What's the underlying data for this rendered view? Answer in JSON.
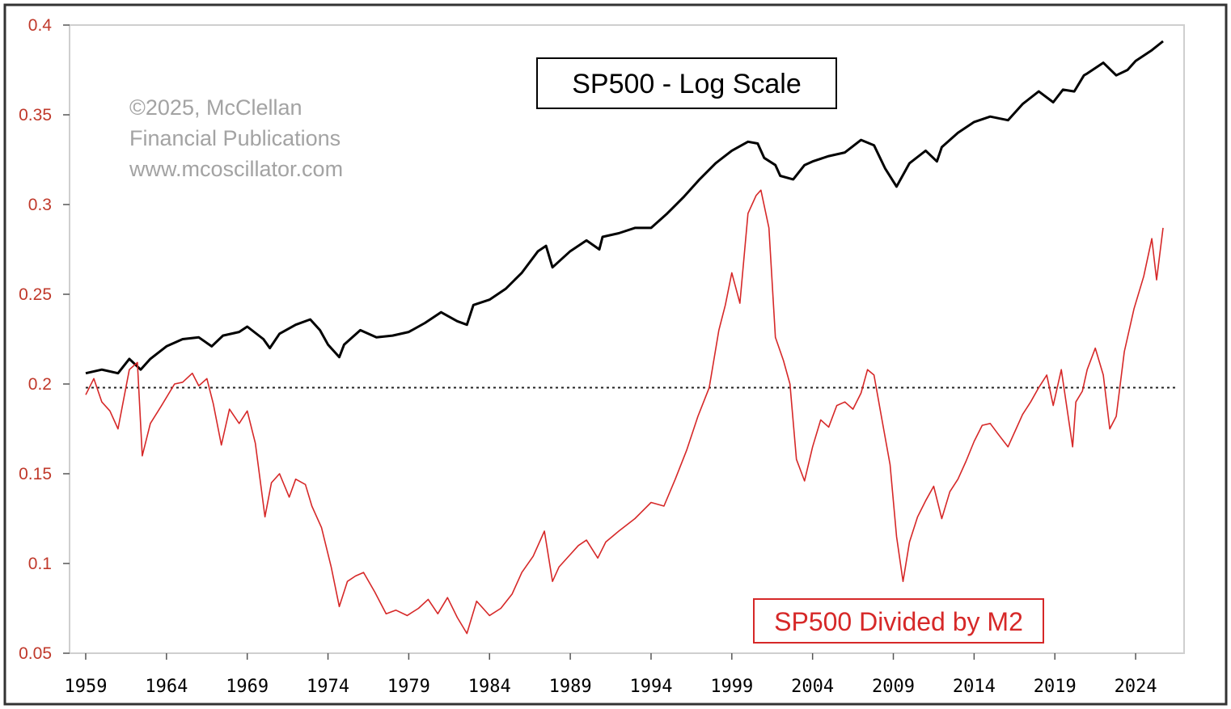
{
  "chart_data": {
    "type": "line",
    "title": "SP500 - Log Scale",
    "copyright": [
      "©2025, McClellan",
      "Financial Publications",
      "www.mcoscillator.com"
    ],
    "xlabel": "",
    "ylabel": "",
    "xlim": [
      1958,
      2027
    ],
    "ylim": [
      0.05,
      0.4
    ],
    "y_ticks": [
      "0.4",
      "0.35",
      "0.3",
      "0.25",
      "0.2",
      "0.15",
      "0.1",
      "0.05"
    ],
    "x_ticks": [
      "1959",
      "1964",
      "1969",
      "1974",
      "1979",
      "1984",
      "1989",
      "1994",
      "1999",
      "2004",
      "2009",
      "2014",
      "2019",
      "2024"
    ],
    "reference_line": {
      "y": 0.198,
      "style": "dotted"
    },
    "colors": {
      "axis_red": "#c0392b",
      "series_red": "#d62828",
      "series_black": "#000000",
      "frame": "#555555"
    },
    "series": [
      {
        "name": "SP500 - Log Scale",
        "color": "#000000",
        "x": [
          1959.0,
          1960.0,
          1961.0,
          1961.7,
          1962.4,
          1963.0,
          1964.0,
          1965.0,
          1966.0,
          1966.8,
          1967.5,
          1968.5,
          1969.0,
          1970.0,
          1970.4,
          1971.0,
          1972.0,
          1972.9,
          1973.5,
          1974.0,
          1974.7,
          1975.0,
          1976.0,
          1977.0,
          1978.0,
          1979.0,
          1980.0,
          1981.0,
          1982.0,
          1982.6,
          1983.0,
          1984.0,
          1985.0,
          1986.0,
          1987.0,
          1987.5,
          1987.9,
          1989.0,
          1990.0,
          1990.8,
          1991.0,
          1992.0,
          1993.0,
          1994.0,
          1995.0,
          1996.0,
          1997.0,
          1998.0,
          1999.0,
          2000.0,
          2000.6,
          2001.0,
          2001.7,
          2002.0,
          2002.8,
          2003.5,
          2004.0,
          2005.0,
          2006.0,
          2007.0,
          2007.8,
          2008.5,
          2009.2,
          2010.0,
          2011.0,
          2011.7,
          2012.0,
          2013.0,
          2014.0,
          2015.0,
          2016.1,
          2017.0,
          2018.0,
          2018.9,
          2019.5,
          2020.2,
          2020.8,
          2021.0,
          2022.0,
          2022.8,
          2023.5,
          2024.0,
          2025.0,
          2025.7
        ],
        "values": [
          0.206,
          0.208,
          0.206,
          0.214,
          0.208,
          0.214,
          0.221,
          0.225,
          0.226,
          0.221,
          0.227,
          0.229,
          0.232,
          0.225,
          0.22,
          0.228,
          0.233,
          0.236,
          0.23,
          0.222,
          0.215,
          0.222,
          0.23,
          0.226,
          0.227,
          0.229,
          0.234,
          0.24,
          0.235,
          0.233,
          0.244,
          0.247,
          0.253,
          0.262,
          0.274,
          0.277,
          0.265,
          0.274,
          0.28,
          0.275,
          0.282,
          0.284,
          0.287,
          0.287,
          0.295,
          0.304,
          0.314,
          0.323,
          0.33,
          0.335,
          0.334,
          0.326,
          0.322,
          0.316,
          0.314,
          0.322,
          0.324,
          0.327,
          0.329,
          0.336,
          0.333,
          0.32,
          0.31,
          0.323,
          0.33,
          0.324,
          0.332,
          0.34,
          0.346,
          0.349,
          0.347,
          0.356,
          0.363,
          0.357,
          0.364,
          0.363,
          0.372,
          0.373,
          0.379,
          0.372,
          0.375,
          0.38,
          0.386,
          0.391
        ]
      },
      {
        "name": "SP500 Divided by M2",
        "color": "#d62828",
        "x": [
          1959.0,
          1959.5,
          1960.0,
          1960.5,
          1961.0,
          1961.7,
          1962.2,
          1962.5,
          1963.0,
          1963.7,
          1964.5,
          1965.0,
          1965.6,
          1966.0,
          1966.5,
          1966.9,
          1967.4,
          1967.9,
          1968.5,
          1969.0,
          1969.5,
          1970.1,
          1970.5,
          1971.0,
          1971.6,
          1972.0,
          1972.6,
          1973.0,
          1973.6,
          1974.2,
          1974.7,
          1975.2,
          1975.7,
          1976.2,
          1976.9,
          1977.6,
          1978.2,
          1978.9,
          1979.6,
          1980.2,
          1980.8,
          1981.4,
          1982.0,
          1982.6,
          1983.2,
          1984.0,
          1984.7,
          1985.4,
          1986.0,
          1986.7,
          1987.4,
          1987.9,
          1988.3,
          1989.0,
          1989.5,
          1990.0,
          1990.7,
          1991.2,
          1992.0,
          1993.0,
          1994.0,
          1994.8,
          1995.5,
          1996.2,
          1996.9,
          1997.6,
          1998.2,
          1998.6,
          1999.0,
          1999.5,
          2000.0,
          2000.5,
          2000.8,
          2001.3,
          2001.7,
          2002.2,
          2002.6,
          2003.0,
          2003.5,
          2004.0,
          2004.5,
          2005.0,
          2005.5,
          2006.0,
          2006.5,
          2007.0,
          2007.4,
          2007.8,
          2008.3,
          2008.8,
          2009.2,
          2009.6,
          2010.0,
          2010.5,
          2011.0,
          2011.5,
          2012.0,
          2012.5,
          2013.0,
          2013.5,
          2014.0,
          2014.5,
          2015.0,
          2015.5,
          2016.1,
          2016.6,
          2017.0,
          2017.5,
          2018.0,
          2018.5,
          2018.9,
          2019.4,
          2020.1,
          2020.3,
          2020.7,
          2021.0,
          2021.5,
          2022.0,
          2022.4,
          2022.8,
          2023.3,
          2023.9,
          2024.5,
          2025.0,
          2025.3,
          2025.7
        ],
        "values": [
          0.194,
          0.203,
          0.19,
          0.185,
          0.175,
          0.208,
          0.212,
          0.16,
          0.178,
          0.188,
          0.2,
          0.201,
          0.206,
          0.199,
          0.203,
          0.189,
          0.166,
          0.186,
          0.178,
          0.185,
          0.167,
          0.126,
          0.145,
          0.15,
          0.137,
          0.147,
          0.144,
          0.132,
          0.12,
          0.098,
          0.076,
          0.09,
          0.093,
          0.095,
          0.084,
          0.072,
          0.074,
          0.071,
          0.075,
          0.08,
          0.072,
          0.081,
          0.07,
          0.061,
          0.079,
          0.071,
          0.075,
          0.083,
          0.095,
          0.104,
          0.118,
          0.09,
          0.098,
          0.105,
          0.11,
          0.113,
          0.103,
          0.112,
          0.118,
          0.125,
          0.134,
          0.132,
          0.147,
          0.163,
          0.182,
          0.198,
          0.23,
          0.244,
          0.262,
          0.245,
          0.295,
          0.305,
          0.308,
          0.287,
          0.226,
          0.213,
          0.2,
          0.158,
          0.146,
          0.165,
          0.18,
          0.176,
          0.188,
          0.19,
          0.186,
          0.195,
          0.208,
          0.205,
          0.18,
          0.155,
          0.115,
          0.09,
          0.112,
          0.126,
          0.135,
          0.143,
          0.125,
          0.14,
          0.147,
          0.157,
          0.168,
          0.177,
          0.178,
          0.172,
          0.165,
          0.175,
          0.183,
          0.19,
          0.198,
          0.205,
          0.188,
          0.208,
          0.165,
          0.19,
          0.196,
          0.208,
          0.22,
          0.205,
          0.175,
          0.182,
          0.218,
          0.242,
          0.26,
          0.281,
          0.258,
          0.287
        ]
      }
    ],
    "series_label": "SP500 Divided by M2"
  }
}
